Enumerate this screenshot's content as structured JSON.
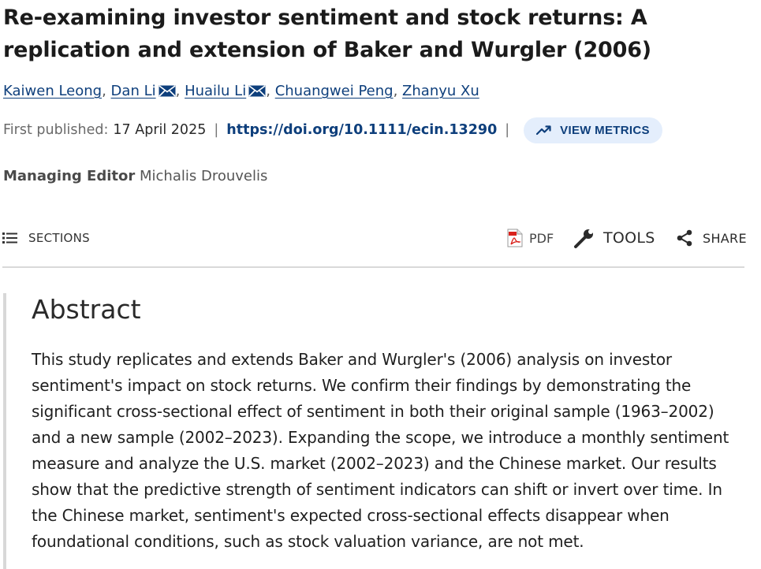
{
  "article": {
    "title": "Re-examining investor sentiment and stock returns: A replication and extension of Baker and Wurgler (2006)"
  },
  "authors": [
    {
      "name": "Kaiwen Leong",
      "email_icon": false
    },
    {
      "name": "Dan Li",
      "email_icon": true
    },
    {
      "name": "Huailu Li",
      "email_icon": true
    },
    {
      "name": "Chuangwei Peng",
      "email_icon": false
    },
    {
      "name": "Zhanyu Xu",
      "email_icon": false
    }
  ],
  "author_separator": ",",
  "publication": {
    "label": "First published:",
    "date": "17 April 2025",
    "separator": "|",
    "doi": "https://doi.org/10.1111/ecin.13290",
    "metrics_label": "VIEW METRICS"
  },
  "editor": {
    "label": "Managing Editor",
    "name": "Michalis Drouvelis"
  },
  "toolbar": {
    "sections_label": "SECTIONS",
    "pdf_label": "PDF",
    "tools_label": "TOOLS",
    "share_label": "SHARE"
  },
  "icons": {
    "sections": "list-icon",
    "email": "envelope-icon",
    "metrics": "trending-up-icon",
    "pdf": "pdf-file-icon",
    "tools": "wrench-icon",
    "share": "share-icon"
  },
  "colors": {
    "link": "#0e3f7c",
    "metrics_bg": "#e4eefc",
    "pdf_red": "#d9221c",
    "divider": "#d9d9d9"
  },
  "abstract": {
    "heading": "Abstract",
    "text": "This study replicates and extends Baker and Wurgler's (2006) analysis on investor sentiment's impact on stock returns. We confirm their findings by demonstrating the significant cross-sectional effect of sentiment in both their original sample (1963–2002) and a new sample (2002–2023). Expanding the scope, we introduce a monthly sentiment measure and analyze the U.S. market (2002–2023) and the Chinese market. Our results show that the predictive strength of sentiment indicators can shift or invert over time. In the Chinese market, sentiment's expected cross-sectional effects disappear when foundational conditions, such as stock valuation variance, are not met."
  }
}
